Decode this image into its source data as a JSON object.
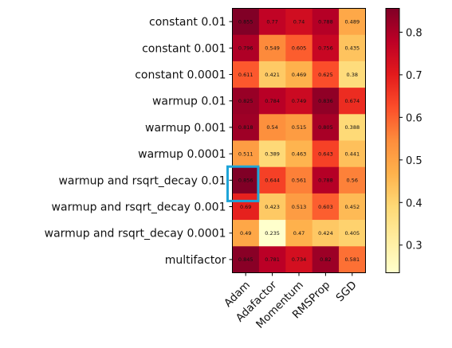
{
  "chart_data": {
    "type": "heatmap",
    "rows": [
      "constant 0.01",
      "constant 0.001",
      "constant 0.0001",
      "warmup 0.01",
      "warmup 0.001",
      "warmup 0.0001",
      "warmup and rsqrt_decay 0.01",
      "warmup and rsqrt_decay 0.001",
      "warmup and rsqrt_decay 0.0001",
      "multifactor"
    ],
    "columns": [
      "Adam",
      "Adafactor",
      "Momentum",
      "RMSProp",
      "SGD"
    ],
    "values": [
      [
        0.855,
        0.77,
        0.74,
        0.788,
        0.489
      ],
      [
        0.796,
        0.549,
        0.605,
        0.756,
        0.435
      ],
      [
        0.611,
        0.421,
        0.469,
        0.625,
        0.38
      ],
      [
        0.825,
        0.784,
        0.749,
        0.836,
        0.674
      ],
      [
        0.818,
        0.54,
        0.515,
        0.805,
        0.388
      ],
      [
        0.511,
        0.389,
        0.463,
        0.643,
        0.441
      ],
      [
        0.856,
        0.644,
        0.561,
        0.788,
        0.56
      ],
      [
        0.69,
        0.423,
        0.513,
        0.603,
        0.452
      ],
      [
        0.49,
        0.235,
        0.47,
        0.424,
        0.405
      ],
      [
        0.845,
        0.781,
        0.734,
        0.82,
        0.581
      ]
    ],
    "colormap": "YlOrRd",
    "vmin": 0.235,
    "vmax": 0.856,
    "colorbar_ticks": [
      0.3,
      0.4,
      0.5,
      0.6,
      0.7,
      0.8
    ],
    "highlight": {
      "row": 6,
      "col": 0,
      "color": "#1ea4d8"
    }
  }
}
